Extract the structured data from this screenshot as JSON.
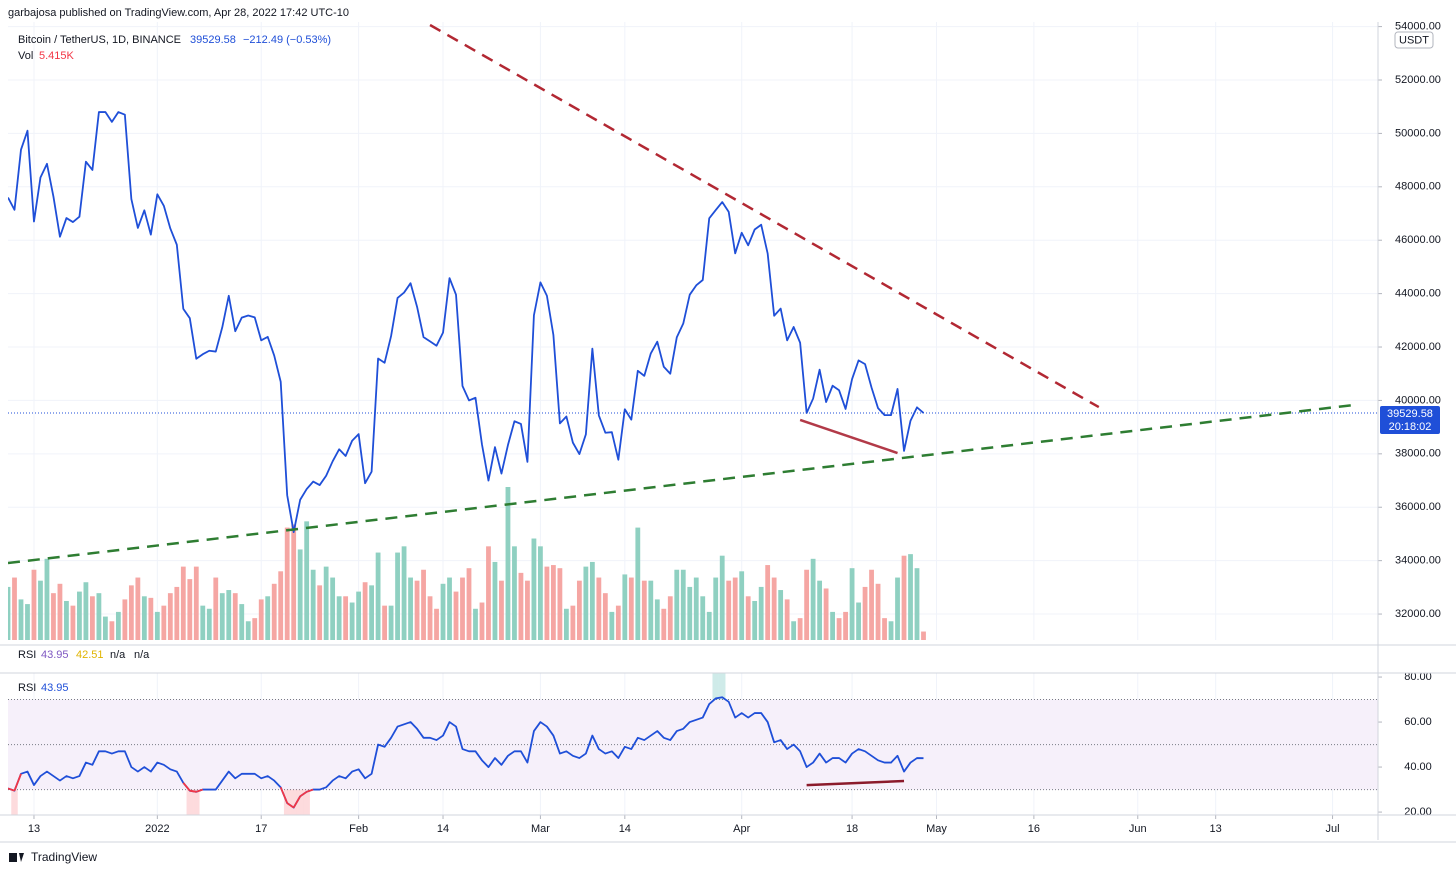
{
  "header": {
    "text": "garbajosa published on TradingView.com, Apr 28, 2022 17:42 UTC-10"
  },
  "footer": {
    "brand": "TradingView"
  },
  "chart_data": [
    {
      "type": "line",
      "price_change": "−212.49 (−0.53%)",
      "currency": "USDT",
      "countdown": "20:18:02",
      "grid": true,
      "x": [
        "2021-12-09",
        "2021-12-10",
        "2021-12-11",
        "2021-12-12",
        "2021-12-13",
        "2021-12-14",
        "2021-12-15",
        "2021-12-16",
        "2021-12-17",
        "2021-12-18",
        "2021-12-19",
        "2021-12-20",
        "2021-12-21",
        "2021-12-22",
        "2021-12-23",
        "2021-12-24",
        "2021-12-25",
        "2021-12-26",
        "2021-12-27",
        "2021-12-28",
        "2021-12-29",
        "2021-12-30",
        "2021-12-31",
        "2022-01-01",
        "2022-01-02",
        "2022-01-03",
        "2022-01-04",
        "2022-01-05",
        "2022-01-06",
        "2022-01-07",
        "2022-01-08",
        "2022-01-09",
        "2022-01-10",
        "2022-01-11",
        "2022-01-12",
        "2022-01-13",
        "2022-01-14",
        "2022-01-15",
        "2022-01-16",
        "2022-01-17",
        "2022-01-18",
        "2022-01-19",
        "2022-01-20",
        "2022-01-21",
        "2022-01-22",
        "2022-01-23",
        "2022-01-24",
        "2022-01-25",
        "2022-01-26",
        "2022-01-27",
        "2022-01-28",
        "2022-01-29",
        "2022-01-30",
        "2022-01-31",
        "2022-02-01",
        "2022-02-02",
        "2022-02-03",
        "2022-02-04",
        "2022-02-05",
        "2022-02-06",
        "2022-02-07",
        "2022-02-08",
        "2022-02-09",
        "2022-02-10",
        "2022-02-11",
        "2022-02-12",
        "2022-02-13",
        "2022-02-14",
        "2022-02-15",
        "2022-02-16",
        "2022-02-17",
        "2022-02-18",
        "2022-02-19",
        "2022-02-20",
        "2022-02-21",
        "2022-02-22",
        "2022-02-23",
        "2022-02-24",
        "2022-02-25",
        "2022-02-26",
        "2022-02-27",
        "2022-02-28",
        "2022-03-01",
        "2022-03-02",
        "2022-03-03",
        "2022-03-04",
        "2022-03-05",
        "2022-03-06",
        "2022-03-07",
        "2022-03-08",
        "2022-03-09",
        "2022-03-10",
        "2022-03-11",
        "2022-03-12",
        "2022-03-13",
        "2022-03-14",
        "2022-03-15",
        "2022-03-16",
        "2022-03-17",
        "2022-03-18",
        "2022-03-19",
        "2022-03-20",
        "2022-03-21",
        "2022-03-22",
        "2022-03-23",
        "2022-03-24",
        "2022-03-25",
        "2022-03-26",
        "2022-03-27",
        "2022-03-28",
        "2022-03-29",
        "2022-03-30",
        "2022-03-31",
        "2022-04-01",
        "2022-04-02",
        "2022-04-03",
        "2022-04-04",
        "2022-04-05",
        "2022-04-06",
        "2022-04-07",
        "2022-04-08",
        "2022-04-09",
        "2022-04-10",
        "2022-04-11",
        "2022-04-12",
        "2022-04-13",
        "2022-04-14",
        "2022-04-15",
        "2022-04-16",
        "2022-04-17",
        "2022-04-18",
        "2022-04-19",
        "2022-04-20",
        "2022-04-21",
        "2022-04-22",
        "2022-04-23",
        "2022-04-24",
        "2022-04-25",
        "2022-04-26",
        "2022-04-27",
        "2022-04-28",
        "2022-04-29"
      ],
      "series": [
        {
          "name": "Bitcoin / TetherUS, 1D, BINANCE",
          "color": "#1f4fd8",
          "values": [
            47600,
            47140,
            49390,
            50100,
            46700,
            48350,
            48860,
            47630,
            46130,
            46830,
            46680,
            46880,
            48940,
            48630,
            50800,
            50800,
            50430,
            50800,
            50700,
            47540,
            46460,
            47120,
            46210,
            47720,
            47290,
            46440,
            45830,
            43430,
            43080,
            41560,
            41730,
            41860,
            41830,
            42740,
            43920,
            42590,
            43100,
            43180,
            43110,
            42250,
            42380,
            41680,
            40700,
            36450,
            35070,
            36280,
            36680,
            36960,
            36830,
            37180,
            37720,
            38170,
            37920,
            38490,
            38740,
            36900,
            37330,
            41570,
            41410,
            42410,
            43840,
            44040,
            44390,
            43510,
            42370,
            42210,
            42050,
            42540,
            44580,
            43960,
            40540,
            40000,
            40100,
            38350,
            37000,
            38250,
            37260,
            38330,
            39220,
            39120,
            37700,
            43190,
            44420,
            43920,
            42450,
            39140,
            39400,
            38420,
            37990,
            38730,
            41940,
            39440,
            38790,
            38810,
            37780,
            39670,
            39280,
            41110,
            40920,
            41760,
            42200,
            41260,
            41000,
            42360,
            42880,
            43960,
            44310,
            44510,
            46820,
            47130,
            47430,
            47060,
            45510,
            46280,
            45810,
            46400,
            46580,
            45500,
            43170,
            43440,
            42250,
            42750,
            42160,
            39530,
            40070,
            41150,
            39940,
            40550,
            40380,
            39680,
            40800,
            41500,
            41360,
            40480,
            39710,
            39450,
            39450,
            40430,
            38110,
            39240,
            39740,
            39529.58
          ]
        }
      ],
      "volume": {
        "name": "Vol",
        "up_color": "#8fd0c1",
        "down_color": "#f5a6a3",
        "values": [
          34,
          40,
          26,
          23,
          45,
          38,
          52,
          30,
          36,
          25,
          22,
          31,
          37,
          28,
          30,
          15,
          12,
          18,
          26,
          35,
          40,
          28,
          27,
          18,
          22,
          30,
          34,
          47,
          39,
          47,
          22,
          20,
          40,
          30,
          32,
          30,
          23,
          12,
          14,
          26,
          28,
          36,
          44,
          72,
          74,
          58,
          76,
          45,
          35,
          47,
          40,
          28,
          28,
          24,
          31,
          37,
          35,
          56,
          22,
          22,
          56,
          60,
          40,
          38,
          45,
          28,
          20,
          36,
          40,
          31,
          40,
          46,
          20,
          24,
          60,
          50,
          38,
          98,
          60,
          43,
          38,
          65,
          60,
          47,
          48,
          46,
          20,
          22,
          38,
          47,
          50,
          40,
          30,
          18,
          22,
          42,
          40,
          72,
          38,
          38,
          26,
          20,
          28,
          45,
          45,
          34,
          40,
          28,
          18,
          40,
          54,
          38,
          40,
          44,
          28,
          25,
          34,
          48,
          40,
          32,
          26,
          12,
          14,
          45,
          52,
          38,
          33,
          18,
          14,
          18,
          46,
          24,
          34,
          45,
          36,
          14,
          12,
          40,
          54,
          55,
          46,
          5.415
        ],
        "value_labels": [
          null,
          null,
          null,
          null,
          null,
          null,
          null,
          null,
          null,
          null,
          null,
          null,
          null,
          null,
          null,
          null,
          null,
          null,
          null,
          null,
          null,
          null,
          null,
          null,
          null,
          null,
          null,
          null,
          null,
          null,
          null,
          null,
          null,
          null,
          null,
          null,
          null,
          null,
          null,
          null,
          null,
          null,
          null,
          null,
          null,
          null,
          null,
          null,
          null,
          null,
          null,
          null,
          null,
          null,
          null,
          null,
          null,
          null,
          null,
          null,
          null,
          null,
          null,
          null,
          null,
          null,
          null,
          null,
          null,
          null,
          null,
          null,
          null,
          null,
          null,
          null,
          null,
          null,
          null,
          null,
          null,
          null,
          null,
          null,
          null,
          null,
          null,
          null,
          null,
          null,
          null,
          null,
          null,
          null,
          null,
          null,
          null,
          null,
          null,
          null,
          null,
          null,
          null,
          null,
          null,
          null,
          null,
          null,
          null,
          null,
          null,
          null,
          null,
          null,
          null,
          null,
          null,
          null,
          null,
          null,
          null,
          null,
          null,
          null,
          null,
          null,
          null,
          null,
          null,
          null,
          null,
          null,
          null,
          null,
          null,
          null,
          null,
          null,
          null,
          null,
          null,
          "5.415K"
        ]
      },
      "xlim": [
        "2021-12-09",
        "2022-07-08"
      ],
      "xticks": [
        {
          "value": "2021-12-13",
          "label": "13"
        },
        {
          "value": "2022-01-01",
          "label": "2022"
        },
        {
          "value": "2022-01-17",
          "label": "17"
        },
        {
          "value": "2022-02-01",
          "label": "Feb"
        },
        {
          "value": "2022-02-14",
          "label": "14"
        },
        {
          "value": "2022-03-01",
          "label": "Mar"
        },
        {
          "value": "2022-03-14",
          "label": "14"
        },
        {
          "value": "2022-04-01",
          "label": "Apr"
        },
        {
          "value": "2022-04-18",
          "label": "18"
        },
        {
          "value": "2022-05-01",
          "label": "May"
        },
        {
          "value": "2022-05-16",
          "label": "16"
        },
        {
          "value": "2022-06-01",
          "label": "Jun"
        },
        {
          "value": "2022-06-13",
          "label": "13"
        },
        {
          "value": "2022-07-01",
          "label": "Jul"
        }
      ],
      "ylim": [
        31028,
        54172
      ],
      "yticks": [
        {
          "value": 32000,
          "label": "32000.00"
        },
        {
          "value": 34000,
          "label": "34000.00"
        },
        {
          "value": 36000,
          "label": "36000.00"
        },
        {
          "value": 38000,
          "label": "38000.00"
        },
        {
          "value": 40000,
          "label": "40000.00"
        },
        {
          "value": 42000,
          "label": "42000.00"
        },
        {
          "value": 44000,
          "label": "44000.00"
        },
        {
          "value": 46000,
          "label": "46000.00"
        },
        {
          "value": 48000,
          "label": "48000.00"
        },
        {
          "value": 50000,
          "label": "50000.00"
        },
        {
          "value": 52000,
          "label": "52000.00"
        },
        {
          "value": 54000,
          "label": "54000.00"
        }
      ],
      "drawings": [
        {
          "color": "#b22833",
          "dashed": true,
          "x": [
            "2022-02-12",
            "2022-05-26"
          ],
          "y": [
            54060,
            39750
          ]
        },
        {
          "color": "#2e7d32",
          "dashed": true,
          "x": [
            "2021-12-09",
            "2022-07-05"
          ],
          "y": [
            33910,
            39850
          ]
        },
        {
          "color": "#b23a48",
          "dashed": false,
          "x": [
            "2022-04-10",
            "2022-04-25"
          ],
          "y": [
            39270,
            38030
          ]
        }
      ]
    },
    {
      "type": "line",
      "series": [
        {
          "name": "RSI",
          "color": "#1f4fd8",
          "values": [
            30.5,
            29.5,
            37,
            38,
            32,
            36,
            38,
            36,
            34,
            36,
            35,
            36,
            42,
            41,
            47,
            47,
            46,
            47,
            47,
            40,
            38,
            40,
            38,
            42,
            41,
            39,
            38,
            33,
            29.5,
            29,
            30,
            30,
            30,
            34,
            38,
            35,
            37,
            37,
            37,
            35,
            36,
            34,
            31,
            24,
            22,
            27,
            29,
            30,
            30,
            31,
            34,
            36,
            35,
            38,
            39,
            35,
            37,
            50,
            49,
            53,
            58,
            59,
            60,
            57,
            53,
            53,
            52,
            54,
            60,
            58,
            48,
            47,
            47,
            43,
            40,
            44,
            41,
            45,
            47,
            47,
            42,
            56,
            60,
            58,
            54,
            46,
            47,
            45,
            44,
            46,
            54,
            48,
            46,
            47,
            44,
            49,
            48,
            53,
            52,
            54,
            56,
            53,
            52,
            56,
            57,
            60,
            61,
            62,
            68,
            70.5,
            71,
            69,
            62,
            64,
            62,
            64,
            64,
            60,
            51,
            52,
            48,
            50,
            47,
            40,
            42,
            46,
            42,
            44,
            44,
            42,
            46,
            48,
            47,
            45,
            43,
            42,
            42,
            45,
            38,
            42,
            44,
            43.95
          ]
        }
      ],
      "ma": {
        "value": 42.51,
        "color": "#e0b400"
      },
      "extra_values": [
        "n/a",
        "n/a"
      ],
      "oversold_color": "#f23645",
      "overbought_color": "#26a69a",
      "levels": [
        30,
        50,
        70
      ],
      "band_color": "#f6f0fa",
      "ylim": [
        18.7,
        81.8
      ],
      "yticks": [
        {
          "value": 20,
          "label": "20.00"
        },
        {
          "value": 40,
          "label": "40.00"
        },
        {
          "value": 60,
          "label": "60.00"
        },
        {
          "value": 80,
          "label": "80.00"
        }
      ],
      "drawings": [
        {
          "color": "#8b1a2b",
          "dashed": false,
          "x": [
            "2022-04-11",
            "2022-04-26"
          ],
          "y": [
            32.0,
            33.8
          ]
        }
      ]
    }
  ]
}
